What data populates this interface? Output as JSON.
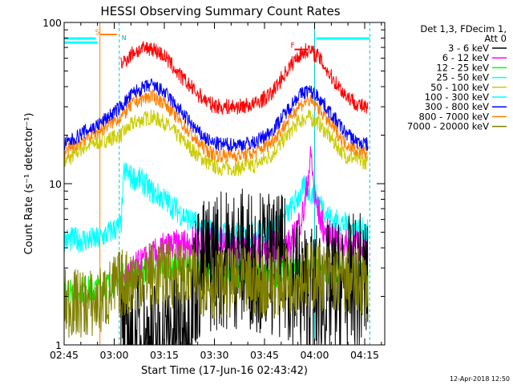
{
  "chart_data": {
    "type": "line",
    "title": "HESSI Observing Summary Count Rates",
    "xlabel": "Start Time (17-Jun-16 02:43:42)",
    "ylabel": "Count Rate (s⁻¹ detector⁻¹)",
    "x_unit": "minutes after 02:45 UT",
    "xlim": [
      0,
      96
    ],
    "ylim": [
      1,
      100
    ],
    "y_scale": "log",
    "x_ticks": [
      {
        "value": 0,
        "label": "02:45"
      },
      {
        "value": 15,
        "label": "03:00"
      },
      {
        "value": 30,
        "label": "03:15"
      },
      {
        "value": 45,
        "label": "03:30"
      },
      {
        "value": 60,
        "label": "03:45"
      },
      {
        "value": 75,
        "label": "04:00"
      },
      {
        "value": 90,
        "label": "04:15"
      }
    ],
    "y_ticks": [
      {
        "value": 1,
        "label": "1"
      },
      {
        "value": 10,
        "label": "10"
      },
      {
        "value": 100,
        "label": "100"
      }
    ],
    "legend": {
      "placement": "right",
      "header": [
        "Det 1,3, FDecim 1,",
        "Att 0"
      ]
    },
    "annotations": {
      "footer": "12-Apr-2018 12:50",
      "saa_label": "S",
      "night_label": "N",
      "flare_label": "F"
    },
    "markers": {
      "saa_start": 10,
      "saa_end": 16.5,
      "night_end": 16.5,
      "night2_start": 75,
      "night2_end": 91.5,
      "flare_start": 69,
      "flare_end": 73,
      "flare_level": 68
    },
    "series": [
      {
        "name": "3 - 6 keV",
        "color": "#000000",
        "x": [
          17,
          30,
          38,
          39,
          45,
          55,
          66,
          72,
          78,
          91
        ],
        "y": [
          1,
          1,
          1.5,
          2.6,
          3.4,
          3.5,
          3.0,
          2.1,
          2.0,
          2.5
        ]
      },
      {
        "name": "6 - 12 keV",
        "color": "#ff00ff",
        "x": [
          17,
          30,
          38,
          45,
          55,
          60,
          68,
          72,
          73,
          74,
          75,
          78,
          84,
          91
        ],
        "y": [
          2.6,
          4.0,
          4.3,
          4.6,
          4.0,
          4.0,
          4.2,
          7.0,
          11.0,
          15.0,
          8.0,
          5.0,
          4.2,
          4.0
        ]
      },
      {
        "name": "12 - 25 keV",
        "color": "#00ff00",
        "x": [
          0,
          10,
          17,
          30,
          45,
          60,
          75,
          91
        ],
        "y": [
          2.2,
          2.2,
          2.6,
          3.2,
          2.7,
          2.7,
          3.0,
          2.7
        ]
      },
      {
        "name": "25 - 50 keV",
        "color": "#00ffff",
        "x": [
          0,
          10,
          17,
          18,
          20,
          23,
          26,
          30,
          35,
          40,
          45,
          50,
          55,
          60,
          63,
          67,
          72,
          75,
          80,
          85,
          91
        ],
        "y": [
          4.5,
          4.5,
          5.5,
          12.0,
          11.0,
          10.5,
          9.0,
          8.0,
          6.5,
          5.5,
          5.0,
          4.8,
          4.8,
          5.0,
          5.5,
          6.5,
          9.5,
          8.5,
          6.0,
          5.5,
          5.0
        ]
      },
      {
        "name": "50 - 100 keV",
        "color": "#cccc00",
        "x": [
          0,
          3,
          6,
          10,
          17,
          21,
          26,
          30,
          35,
          40,
          44,
          47,
          52,
          57,
          62,
          66,
          70,
          73,
          76,
          80,
          84,
          88,
          91
        ],
        "y": [
          13.5,
          15.0,
          17.0,
          18.0,
          20.0,
          24.0,
          26.0,
          24.0,
          19.0,
          15.0,
          13.0,
          12.5,
          12.5,
          13.0,
          15.0,
          19.0,
          24.0,
          26.0,
          24.0,
          19.0,
          15.0,
          14.0,
          13.5
        ]
      },
      {
        "name": "100 - 300 keV",
        "color": "#00ffff",
        "x": [
          0,
          10
        ],
        "y": [
          75,
          75
        ]
      },
      {
        "name": "300 - 800 keV",
        "color": "#0000ff",
        "x": [
          0,
          3,
          6,
          10,
          17,
          21,
          26,
          30,
          35,
          40,
          44,
          47,
          52,
          57,
          62,
          66,
          70,
          73,
          76,
          80,
          84,
          88,
          91
        ],
        "y": [
          17.5,
          19.0,
          21.0,
          23.0,
          30.0,
          37.0,
          41.0,
          37.0,
          28.0,
          21.0,
          18.0,
          17.5,
          17.5,
          18.0,
          21.0,
          27.0,
          35.0,
          38.0,
          35.0,
          27.0,
          21.0,
          18.0,
          17.5
        ]
      },
      {
        "name": "800 - 7000 keV",
        "color": "#ff8000",
        "x": [
          0,
          3,
          6,
          10,
          17,
          21,
          26,
          30,
          35,
          40,
          44,
          47,
          52,
          57,
          62,
          66,
          70,
          73,
          76,
          80,
          84,
          88,
          91
        ],
        "y": [
          15.5,
          17.0,
          19.0,
          21.0,
          26.0,
          32.0,
          35.0,
          32.0,
          24.0,
          18.0,
          15.5,
          15.0,
          15.0,
          15.5,
          18.0,
          23.0,
          30.0,
          33.0,
          30.0,
          23.0,
          18.0,
          16.0,
          15.5
        ]
      },
      {
        "name": "7000 - 20000 keV",
        "color": "#808000",
        "x": [
          0,
          10,
          17,
          30,
          45,
          60,
          75,
          91
        ],
        "y": [
          1.8,
          1.8,
          2.4,
          2.8,
          2.4,
          2.4,
          2.7,
          2.4
        ]
      }
    ],
    "extra_series": [
      {
        "color": "#ff0000",
        "x": [
          17,
          21,
          26,
          30,
          35,
          40,
          44,
          47,
          52,
          57,
          62,
          66,
          70,
          73,
          76,
          80,
          84,
          88,
          91
        ],
        "y": [
          55,
          66,
          70,
          62,
          46,
          36,
          31,
          30,
          30,
          31,
          36,
          48,
          62,
          68,
          62,
          46,
          36,
          31,
          29
        ]
      }
    ]
  }
}
